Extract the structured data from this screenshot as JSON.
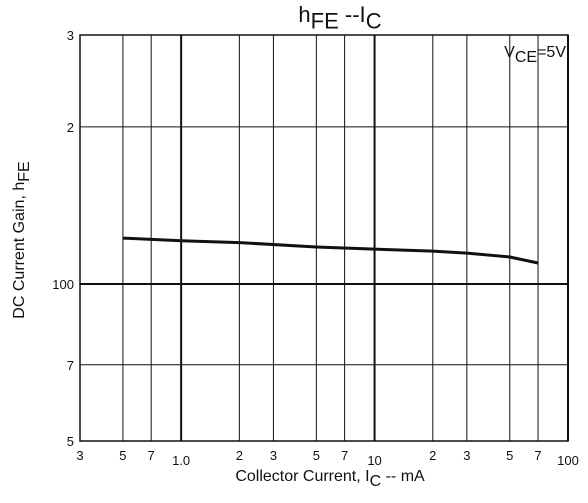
{
  "chart_data": {
    "type": "line",
    "title_parts": [
      "h",
      "FE",
      " --I",
      "C"
    ],
    "annotation_parts": [
      "V",
      "CE",
      "=5V"
    ],
    "x_label_parts": [
      "Collector Current, I",
      "C",
      " -- mA"
    ],
    "y_label_parts": [
      "DC Current Gain, h",
      "FE"
    ],
    "x": [
      0.5,
      1,
      2,
      5,
      10,
      20,
      30,
      50,
      70
    ],
    "series": [
      {
        "color": "#111111",
        "values": [
          122.4,
          121,
          120,
          117.7,
          116.6,
          115.6,
          114.6,
          112.6,
          109.7
        ]
      }
    ],
    "xlim": [
      0.3,
      100
    ],
    "ylim": [
      50,
      300
    ],
    "log_x": true,
    "log_y": true,
    "grid": true,
    "xticks": [
      {
        "value": 0.3,
        "label": "3"
      },
      {
        "value": 0.5,
        "label": "5"
      },
      {
        "value": 0.7,
        "label": "7"
      },
      {
        "value": 1,
        "label": "1.0"
      },
      {
        "value": 2,
        "label": "2"
      },
      {
        "value": 3,
        "label": "3"
      },
      {
        "value": 5,
        "label": "5"
      },
      {
        "value": 7,
        "label": "7"
      },
      10,
      {
        "value": 20,
        "label": "2"
      },
      {
        "value": 30,
        "label": "3"
      },
      {
        "value": 50,
        "label": "5"
      },
      {
        "value": 70,
        "label": "7"
      },
      100
    ],
    "yticks": [
      {
        "value": 50,
        "label": "5"
      },
      {
        "value": 70,
        "label": "7"
      },
      100,
      {
        "value": 200,
        "label": "2"
      },
      {
        "value": 300,
        "label": "3"
      }
    ]
  }
}
